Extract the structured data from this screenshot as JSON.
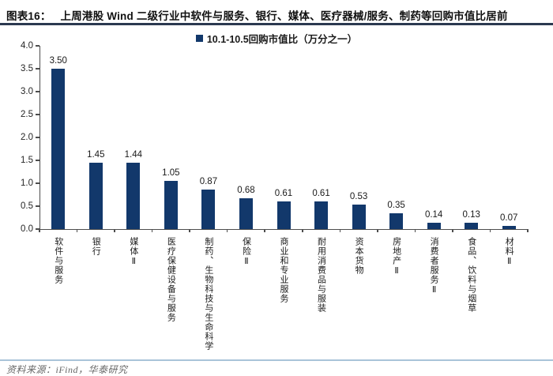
{
  "figure": {
    "tag": "图表16：",
    "title": "上周港股 Wind 二级行业中软件与服务、银行、媒体、医疗器械/服务、制药等回购市值比居前"
  },
  "legend": {
    "label": "10.1-10.5回购市值比（万分之一）"
  },
  "chart_data": {
    "type": "bar",
    "title": "10.1-10.5回购市值比（万分之一）",
    "categories": [
      "软件与服务",
      "银行",
      "媒体Ⅱ",
      "医疗保健设备与服务",
      "制药、生物科技与生命科学",
      "保险Ⅱ",
      "商业和专业服务",
      "耐用消费品与服装",
      "资本货物",
      "房地产Ⅱ",
      "消费者服务Ⅱ",
      "食品、饮料与烟草",
      "材料Ⅱ"
    ],
    "values": [
      3.5,
      1.45,
      1.44,
      1.05,
      0.87,
      0.68,
      0.61,
      0.61,
      0.53,
      0.35,
      0.14,
      0.13,
      0.07
    ],
    "value_labels": [
      "3.50",
      "1.45",
      "1.44",
      "1.05",
      "0.87",
      "0.68",
      "0.61",
      "0.61",
      "0.53",
      "0.35",
      "0.14",
      "0.13",
      "0.07"
    ],
    "xlabel": "",
    "ylabel": "",
    "ylim": [
      0,
      4
    ],
    "ytick_step": 0.5,
    "ytick_labels_top_to_bottom": [
      "4.0",
      "3.5",
      "3.0",
      "2.5",
      "2.0",
      "1.5",
      "1.0",
      "0.5",
      "0.0"
    ],
    "grid": false,
    "legend_position": "top-center",
    "bar_color": "#12386B"
  },
  "footer": {
    "source": "资料来源：iFind，华泰研究"
  },
  "colors": {
    "bar": "#12386B",
    "title_rule": "#2b3950",
    "footer_rule": "#a9c4d9",
    "footer_text": "#666666"
  }
}
